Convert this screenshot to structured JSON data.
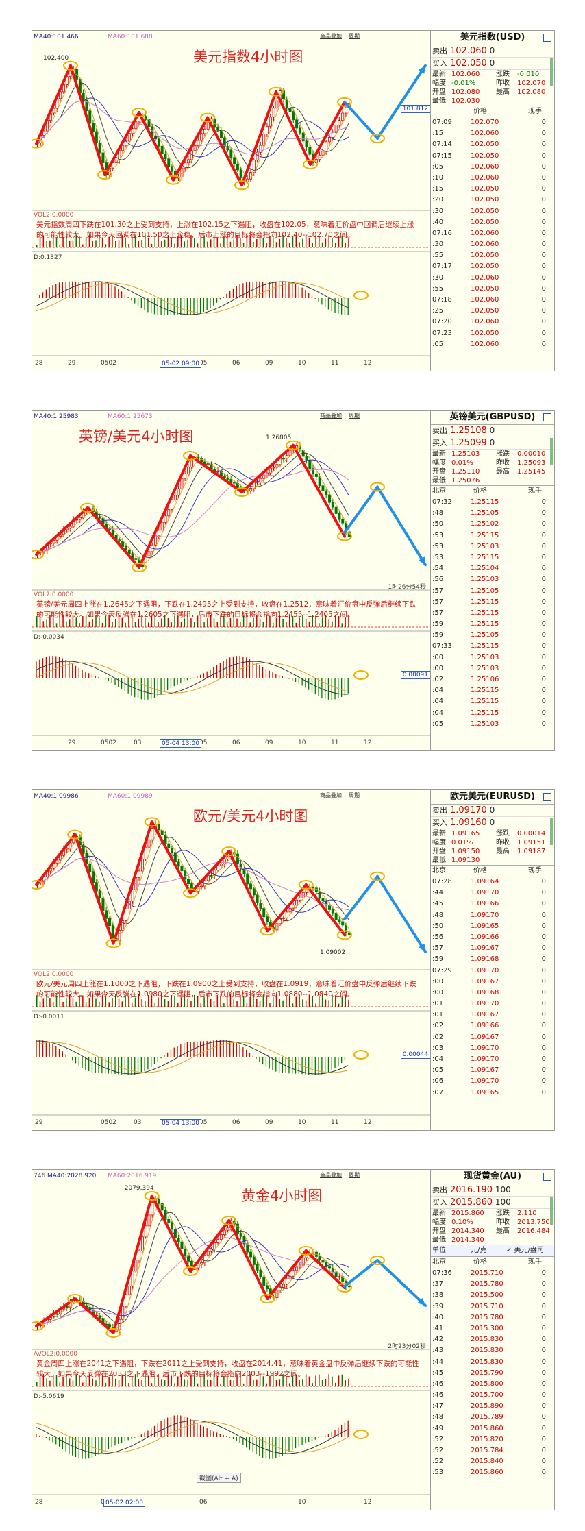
{
  "panels": [
    {
      "id": "usd",
      "top": 44,
      "height": 498,
      "title": "美元指数4小时图",
      "ma_label": "MA40:101.466",
      "ma_label2": "MA60:101.688",
      "peak_label": "102.400",
      "vol_label": "VOL2:0.0000",
      "macd_label": "D:0.1327",
      "right_box": "101.812",
      "cursor_label": "05-02 09:00",
      "countdown": "",
      "top_links": [
        "商品叠加",
        "周期"
      ],
      "description": "美元指数周四下跌在101.30之上受到支持，上涨在102.15之下遇阻，收盘在102.05，意味着汇价盘中回调后继续上涨的可能性较大。如果今天回调在101.50之上企稳，后市上涨的目标将会指向102.40--102.70之间。",
      "quote": {
        "name": "美元指数(USD)",
        "sell_label": "卖出",
        "sell": "102.060",
        "sell_vol": "0",
        "buy_label": "买入",
        "buy": "102.050",
        "buy_vol": "0",
        "stats": [
          [
            "最新",
            "102.060",
            "涨跌",
            "-0.010"
          ],
          [
            "幅度",
            "-0.01%",
            "昨收",
            "102.070"
          ],
          [
            "开盘",
            "102.080",
            "最高",
            "102.080"
          ],
          [
            "最低",
            "102.030",
            "",
            ""
          ]
        ],
        "list_head": [
          "",
          "价格",
          "现手"
        ],
        "ticks": [
          [
            "07:09",
            "102.070",
            "0"
          ],
          [
            ":15",
            "102.060",
            "0"
          ],
          [
            "07:14",
            "102.050",
            "0"
          ],
          [
            "07:15",
            "102.050",
            "0"
          ],
          [
            ":05",
            "102.060",
            "0"
          ],
          [
            ":10",
            "102.060",
            "0"
          ],
          [
            ":15",
            "102.050",
            "0"
          ],
          [
            ":20",
            "102.050",
            "0"
          ],
          [
            ":30",
            "102.050",
            "0"
          ],
          [
            ":40",
            "102.050",
            "0"
          ],
          [
            "07:16",
            "102.060",
            "0"
          ],
          [
            ":30",
            "102.060",
            "0"
          ],
          [
            ":55",
            "102.050",
            "0"
          ],
          [
            "07:17",
            "102.050",
            "0"
          ],
          [
            ":30",
            "102.060",
            "0"
          ],
          [
            ":55",
            "102.050",
            "0"
          ],
          [
            "07:18",
            "102.060",
            "0"
          ],
          [
            ":25",
            "102.050",
            "0"
          ],
          [
            "07:20",
            "102.060",
            "0"
          ],
          [
            "07:23",
            "102.050",
            "0"
          ],
          [
            ":05",
            "102.060",
            "0"
          ]
        ]
      },
      "x_ticks": [
        "28",
        "29",
        "0502",
        "",
        "04",
        "05",
        "06",
        "09",
        "10",
        "11",
        "12"
      ],
      "chart_data": {
        "type": "candlestick",
        "title": "美元指数4小时图",
        "zigzag": [
          101.65,
          102.4,
          101.35,
          101.95,
          101.3,
          101.9,
          101.25,
          102.15,
          101.45,
          102.05
        ],
        "forecast": [
          102.05,
          101.7,
          102.4
        ],
        "ylim": [
          101.1,
          102.55
        ]
      }
    },
    {
      "id": "gbp",
      "top": 598,
      "height": 498,
      "title": "英镑/美元4小时图",
      "ma_label": "MA40:1.25983",
      "ma_label2": "MA60:1.25673",
      "peak_label": "1.26805",
      "vol_label": "VOL2:0.0000",
      "macd_label": "D:-0.0034",
      "right_box": "0.00091",
      "cursor_label": "05-04 13:00",
      "countdown": "1时26分54秒",
      "top_links": [
        "商品叠加",
        "周期"
      ],
      "description": "英镑/美元周四上涨在1.2645之下遇阻，下跌在1.2495之上受到支持，收盘在1.2512，意味着汇价盘中反弹后继续下跌的可能性较大。如果今天反弹在1.2605之下遇阻，后市下跌的目标将会指向1.2455--1.2405之间。",
      "quote": {
        "name": "英镑美元(GBPUSD)",
        "sell_label": "卖出",
        "sell": "1.25108",
        "sell_vol": "0",
        "buy_label": "买入",
        "buy": "1.25099",
        "buy_vol": "0",
        "stats": [
          [
            "最新",
            "1.25103",
            "涨跌",
            "0.00010"
          ],
          [
            "幅度",
            "0.01%",
            "昨收",
            "1.25093"
          ],
          [
            "开盘",
            "1.25110",
            "最高",
            "1.25145"
          ],
          [
            "最低",
            "1.25076",
            "",
            ""
          ]
        ],
        "list_head": [
          "北京",
          "价格",
          "现手"
        ],
        "ticks": [
          [
            "07:32",
            "1.25115",
            "0"
          ],
          [
            ":48",
            "1.25105",
            "0"
          ],
          [
            ":50",
            "1.25102",
            "0"
          ],
          [
            ":53",
            "1.25115",
            "0"
          ],
          [
            ":53",
            "1.25103",
            "0"
          ],
          [
            ":53",
            "1.25115",
            "0"
          ],
          [
            ":54",
            "1.25104",
            "0"
          ],
          [
            ":56",
            "1.25103",
            "0"
          ],
          [
            ":57",
            "1.25105",
            "0"
          ],
          [
            ":57",
            "1.25115",
            "0"
          ],
          [
            ":57",
            "1.25115",
            "0"
          ],
          [
            ":59",
            "1.25115",
            "0"
          ],
          [
            ":59",
            "1.25105",
            "0"
          ],
          [
            "07:33",
            "1.25115",
            "0"
          ],
          [
            ":00",
            "1.25103",
            "0"
          ],
          [
            ":00",
            "1.25103",
            "0"
          ],
          [
            ":02",
            "1.25106",
            "0"
          ],
          [
            ":04",
            "1.25115",
            "0"
          ],
          [
            ":04",
            "1.25115",
            "0"
          ],
          [
            ":04",
            "1.25115",
            "0"
          ],
          [
            ":05",
            "1.25103",
            "0"
          ]
        ]
      },
      "x_ticks": [
        "",
        "29",
        "0502",
        "03",
        "04",
        "05",
        "06",
        "09",
        "10",
        "11",
        "12"
      ],
      "chart_data": {
        "type": "candlestick",
        "title": "英镑/美元4小时图",
        "zigzag": [
          1.247,
          1.256,
          1.2445,
          1.266,
          1.259,
          1.268,
          1.2505
        ],
        "forecast": [
          1.2512,
          1.26,
          1.245
        ],
        "ylim": [
          1.242,
          1.271
        ]
      }
    },
    {
      "id": "eur",
      "top": 1152,
      "height": 498,
      "title": "欧元/美元4小时图",
      "ma_label": "MA40:1.09986",
      "ma_label2": "MA60:1.09989",
      "peak_label": "",
      "trough_label": "1.09002",
      "vol_label": "VOL2:0.0000",
      "macd_label": "D:-0.0011",
      "right_box": "0.00044",
      "cursor_label": "05-04 13:00",
      "countdown": "",
      "top_links": [
        "商品叠加",
        "周期"
      ],
      "description": "欧元/美元周四上涨在1.1000之下遇阻，下跌在1.0900之上受到支持，收盘在1.0919，意味着汇价盘中反弹后继续下跌的可能性较大。如果今天反弹在1.0980之下遇阻，后市下跌的目标将会指向1.0880--1.0840之间。",
      "quote": {
        "name": "欧元美元(EURUSD)",
        "sell_label": "卖出",
        "sell": "1.09170",
        "sell_vol": "0",
        "buy_label": "买入",
        "buy": "1.09160",
        "buy_vol": "0",
        "stats": [
          [
            "最新",
            "1.09165",
            "涨跌",
            "0.00014"
          ],
          [
            "幅度",
            "0.01%",
            "昨收",
            "1.09151"
          ],
          [
            "开盘",
            "1.09150",
            "最高",
            "1.09187"
          ],
          [
            "最低",
            "1.09130",
            "",
            ""
          ]
        ],
        "list_head": [
          "北京",
          "价格",
          "现手"
        ],
        "ticks": [
          [
            "07:28",
            "1.09164",
            "0"
          ],
          [
            ":44",
            "1.09170",
            "0"
          ],
          [
            ":45",
            "1.09166",
            "0"
          ],
          [
            ":48",
            "1.09170",
            "0"
          ],
          [
            ":50",
            "1.09165",
            "0"
          ],
          [
            ":56",
            "1.09166",
            "0"
          ],
          [
            ":57",
            "1.09167",
            "0"
          ],
          [
            ":59",
            "1.09168",
            "0"
          ],
          [
            "07:29",
            "1.09170",
            "0"
          ],
          [
            ":00",
            "1.09167",
            "0"
          ],
          [
            ":00",
            "1.09168",
            "0"
          ],
          [
            ":01",
            "1.09170",
            "0"
          ],
          [
            ":01",
            "1.09167",
            "0"
          ],
          [
            ":02",
            "1.09166",
            "0"
          ],
          [
            ":02",
            "1.09167",
            "0"
          ],
          [
            ":03",
            "1.09170",
            "0"
          ],
          [
            ":04",
            "1.09170",
            "0"
          ],
          [
            ":05",
            "1.09167",
            "0"
          ],
          [
            ":06",
            "1.09170",
            "0"
          ],
          [
            ":07",
            "1.09165",
            "0"
          ]
        ]
      },
      "x_ticks": [
        "29",
        "",
        "0502",
        "03",
        "04",
        "05",
        "06",
        "09",
        "10",
        "11",
        "12"
      ],
      "chart_data": {
        "type": "candlestick",
        "title": "欧元/美元4小时图",
        "zigzag": [
          1.096,
          1.102,
          1.089,
          1.1035,
          1.095,
          1.1,
          1.0905,
          1.096,
          1.09
        ],
        "forecast": [
          1.0919,
          1.097,
          1.088
        ],
        "ylim": [
          1.087,
          1.105
        ]
      }
    },
    {
      "id": "gold",
      "top": 1706,
      "height": 498,
      "title": "黄金4小时图",
      "ma_label": "MA40:2028.920",
      "ma_label0": "746",
      "ma_label2": "MA60:2016.919",
      "peak_label": "2079.394",
      "vol_label": "AVOL2:0.0000",
      "macd_label": "D:-5.0619",
      "right_box": "",
      "cursor_label": "05-02 02:00",
      "countdown": "2时23分02秒",
      "screenshot_hint": "截图(Alt + A)",
      "top_links": [
        "商品叠加",
        "周期"
      ],
      "description": "黄金周四上涨在2041之下遇阻，下跌在2011之上受到支持，收盘在2014.41，意味着黄金盘中反弹后继续下跌的可能性较大。如果今天反弹在2033之下遇阻，后市下跌的目标将会指向2003--1992之间。",
      "quote": {
        "name": "现货黄金(AU)",
        "sell_label": "卖出",
        "sell": "2016.190",
        "sell_vol": "100",
        "buy_label": "买入",
        "buy": "2015.860",
        "buy_vol": "100",
        "stats": [
          [
            "最新",
            "2015.860",
            "涨跌",
            "2.110"
          ],
          [
            "幅度",
            "0.10%",
            "昨收",
            "2013.750"
          ],
          [
            "开盘",
            "2014.340",
            "最高",
            "2016.484"
          ],
          [
            "最低",
            "2014.340",
            "",
            ""
          ]
        ],
        "unit_row": [
          "单位",
          "元/克",
          "美元/盎司"
        ],
        "list_head": [
          "北京",
          "价格",
          "现手"
        ],
        "ticks": [
          [
            "07:36",
            "2015.710",
            "0"
          ],
          [
            ":37",
            "2015.780",
            "0"
          ],
          [
            ":38",
            "2015.500",
            "0"
          ],
          [
            ":39",
            "2015.710",
            "0"
          ],
          [
            ":40",
            "2015.780",
            "0"
          ],
          [
            ":41",
            "2015.300",
            "0"
          ],
          [
            ":42",
            "2015.830",
            "0"
          ],
          [
            ":43",
            "2015.830",
            "0"
          ],
          [
            ":44",
            "2015.830",
            "0"
          ],
          [
            ":45",
            "2015.790",
            "0"
          ],
          [
            ":46",
            "2015.800",
            "0"
          ],
          [
            ":46",
            "2015.700",
            "0"
          ],
          [
            ":47",
            "2015.890",
            "0"
          ],
          [
            ":48",
            "2015.789",
            "0"
          ],
          [
            ":49",
            "2015.860",
            "0"
          ],
          [
            ":52",
            "2015.820",
            "0"
          ],
          [
            ":52",
            "2015.784",
            "0"
          ],
          [
            ":52",
            "2015.840",
            "0"
          ],
          [
            ":53",
            "2015.860",
            "0"
          ]
        ]
      },
      "x_ticks": [
        "28",
        "",
        "0",
        "03",
        "",
        "06",
        "",
        "",
        "10",
        "",
        "12"
      ],
      "chart_data": {
        "type": "candlestick",
        "title": "黄金4小时图",
        "zigzag": [
          1985,
          2005,
          1980,
          2080,
          2025,
          2062,
          2005,
          2040,
          2013
        ],
        "forecast": [
          2014,
          2033,
          2000
        ],
        "ylim": [
          1975,
          2085
        ]
      }
    }
  ]
}
